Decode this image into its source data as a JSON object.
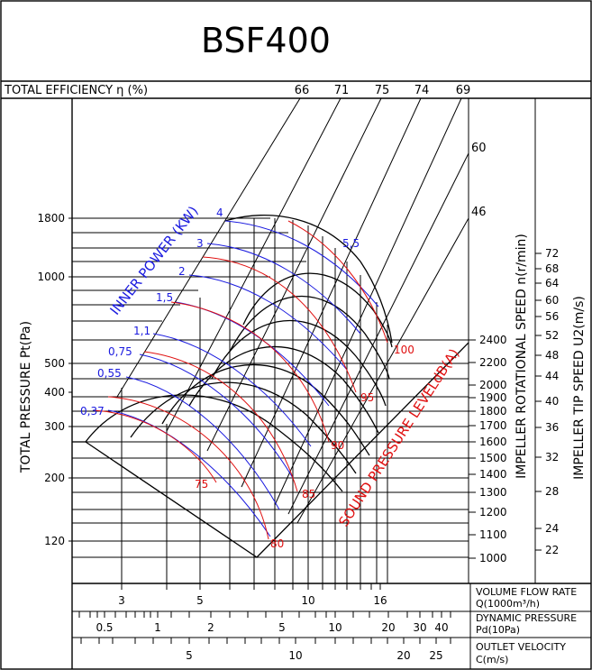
{
  "chart_data": {
    "type": "line",
    "title": "BSF400",
    "efficiency_label": "TOTAL EFFICIENCY η (%)",
    "efficiency_lines": [
      "66",
      "71",
      "75",
      "74",
      "69",
      "60",
      "46"
    ],
    "ylabel": "TOTAL PRESSURE Pt(Pa)",
    "y_ticks": [
      "1800",
      "1000",
      "500",
      "400",
      "300",
      "200",
      "120"
    ],
    "power_label": "INNER POWER (KW)",
    "power_lines": [
      "4",
      "3",
      "2",
      "1,5",
      "1,1",
      "0,75",
      "0,55",
      "0,37",
      "5,5"
    ],
    "sound_label": "SOUND PRESSURE LEVELdB(A)",
    "sound_lines": [
      "75",
      "80",
      "85",
      "90",
      "95",
      "100"
    ],
    "speed_label": "IMPELLER ROTATIONAL SPEED n(r/min)",
    "speed_ticks": [
      "2400",
      "2200",
      "2000",
      "1900",
      "1800",
      "1700",
      "1600",
      "1500",
      "1400",
      "1300",
      "1200",
      "1100",
      "1000"
    ],
    "tip_label": "IMPELLER TIP SPEED U2(m/s)",
    "tip_ticks": [
      "72",
      "68",
      "64",
      "60",
      "56",
      "52",
      "48",
      "44",
      "40",
      "36",
      "32",
      "28",
      "24",
      "22"
    ],
    "flow_label_1": "VOLUME FLOW RATE",
    "flow_label_2": "Q(1000m³/h)",
    "flow_ticks": [
      "3",
      "5",
      "10",
      "16"
    ],
    "dyn_label_1": "DYNAMIC PRESSURE",
    "dyn_label_2": "Pd(10Pa)",
    "dyn_ticks": [
      "0.5",
      "1",
      "2",
      "5",
      "10",
      "20",
      "30",
      "40"
    ],
    "vel_label_1": "OUTLET VELOCITY",
    "vel_label_2": "C(m/s)",
    "vel_ticks": [
      "5",
      "10",
      "20",
      "25"
    ],
    "colors": {
      "power": "#1a1adf",
      "sound": "#e01010",
      "axis": "#000000"
    }
  }
}
